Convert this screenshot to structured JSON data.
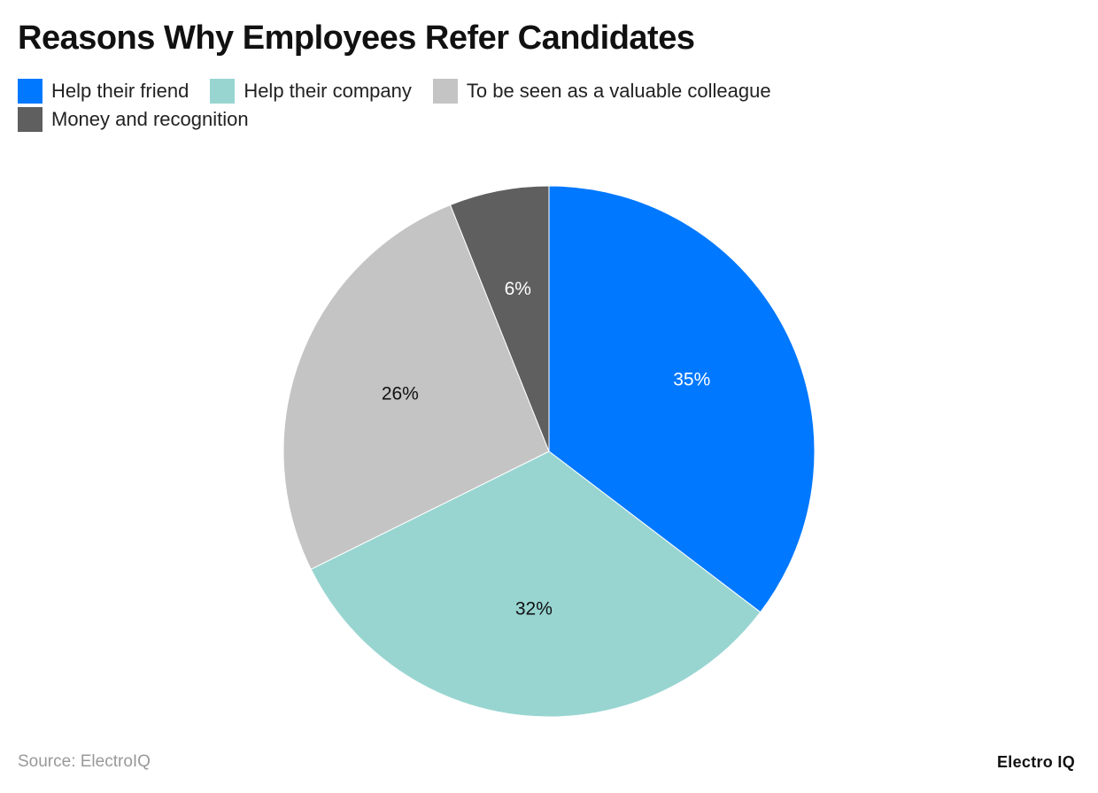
{
  "chart_data": {
    "type": "pie",
    "title": "Reasons Why Employees Refer Candidates",
    "slices": [
      {
        "label": "Help their friend",
        "value": 35,
        "data_label": "35%",
        "color": "#0078FF",
        "label_color": "#ffffff"
      },
      {
        "label": "Help their company",
        "value": 32,
        "data_label": "32%",
        "color": "#98D5D1",
        "label_color": "#111111"
      },
      {
        "label": "To be seen as a valuable colleague",
        "value": 26,
        "data_label": "26%",
        "color": "#C4C4C4",
        "label_color": "#111111"
      },
      {
        "label": "Money and recognition",
        "value": 6,
        "data_label": "6%",
        "color": "#5F5F5F",
        "label_color": "#ffffff"
      }
    ],
    "start": "top",
    "direction": "clockwise",
    "legend_position": "top-left"
  },
  "footer": {
    "source": "Source: ElectroIQ",
    "logo": "Electro IQ"
  }
}
